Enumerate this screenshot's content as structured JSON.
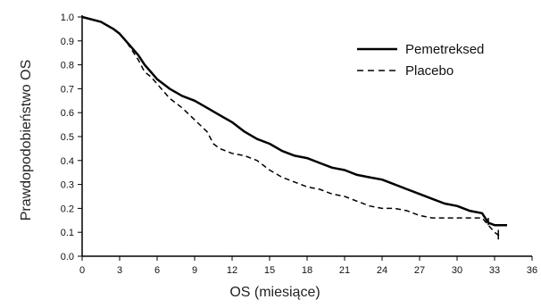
{
  "chart_data": {
    "type": "line",
    "xlabel": "OS (miesiące)",
    "ylabel": "Prawdopodobieństwo OS",
    "xlim": [
      0,
      36
    ],
    "ylim": [
      0,
      1.0
    ],
    "x_ticks": [
      0,
      3,
      6,
      9,
      12,
      15,
      18,
      21,
      24,
      27,
      30,
      33,
      36
    ],
    "y_ticks": [
      0.0,
      0.1,
      0.2,
      0.3,
      0.4,
      0.5,
      0.6,
      0.7,
      0.8,
      0.9,
      1.0
    ],
    "legend_position": "top-right",
    "grid": false,
    "series": [
      {
        "name": "Pemetreksed",
        "style": "solid",
        "color": "#000000",
        "x": [
          0,
          1.5,
          2.5,
          3.0,
          3.5,
          4.0,
          4.5,
          5.0,
          5.5,
          6.0,
          6.5,
          7.0,
          8.0,
          9.0,
          10.0,
          11.0,
          12.0,
          13.0,
          14.0,
          15.0,
          16.0,
          17.0,
          18.0,
          19.0,
          20.0,
          21.0,
          22.0,
          23.0,
          24.0,
          25.0,
          26.0,
          27.0,
          28.0,
          29.0,
          30.0,
          31.0,
          32.0,
          32.5,
          33.0,
          34.0
        ],
        "y": [
          1.0,
          0.98,
          0.95,
          0.93,
          0.9,
          0.87,
          0.84,
          0.8,
          0.77,
          0.74,
          0.72,
          0.7,
          0.67,
          0.65,
          0.62,
          0.59,
          0.56,
          0.52,
          0.49,
          0.47,
          0.44,
          0.42,
          0.41,
          0.39,
          0.37,
          0.36,
          0.34,
          0.33,
          0.32,
          0.3,
          0.28,
          0.26,
          0.24,
          0.22,
          0.21,
          0.19,
          0.18,
          0.14,
          0.13,
          0.13
        ]
      },
      {
        "name": "Placebo",
        "style": "dashed",
        "color": "#000000",
        "x": [
          0,
          1.5,
          2.5,
          3.0,
          3.5,
          4.0,
          4.5,
          5.0,
          5.5,
          6.0,
          7.0,
          8.0,
          9.0,
          10.0,
          10.5,
          11.0,
          12.0,
          13.0,
          14.0,
          15.0,
          16.0,
          17.0,
          18.0,
          19.0,
          20.0,
          21.0,
          22.0,
          23.0,
          24.0,
          25.0,
          26.0,
          27.0,
          28.0,
          29.0,
          30.0,
          31.0,
          32.0,
          33.0,
          33.5
        ],
        "y": [
          1.0,
          0.98,
          0.95,
          0.93,
          0.9,
          0.86,
          0.82,
          0.77,
          0.75,
          0.72,
          0.66,
          0.62,
          0.57,
          0.52,
          0.47,
          0.45,
          0.43,
          0.42,
          0.4,
          0.36,
          0.33,
          0.31,
          0.29,
          0.28,
          0.26,
          0.25,
          0.23,
          0.21,
          0.2,
          0.2,
          0.19,
          0.17,
          0.16,
          0.16,
          0.16,
          0.16,
          0.16,
          0.1,
          0.08
        ]
      }
    ]
  }
}
